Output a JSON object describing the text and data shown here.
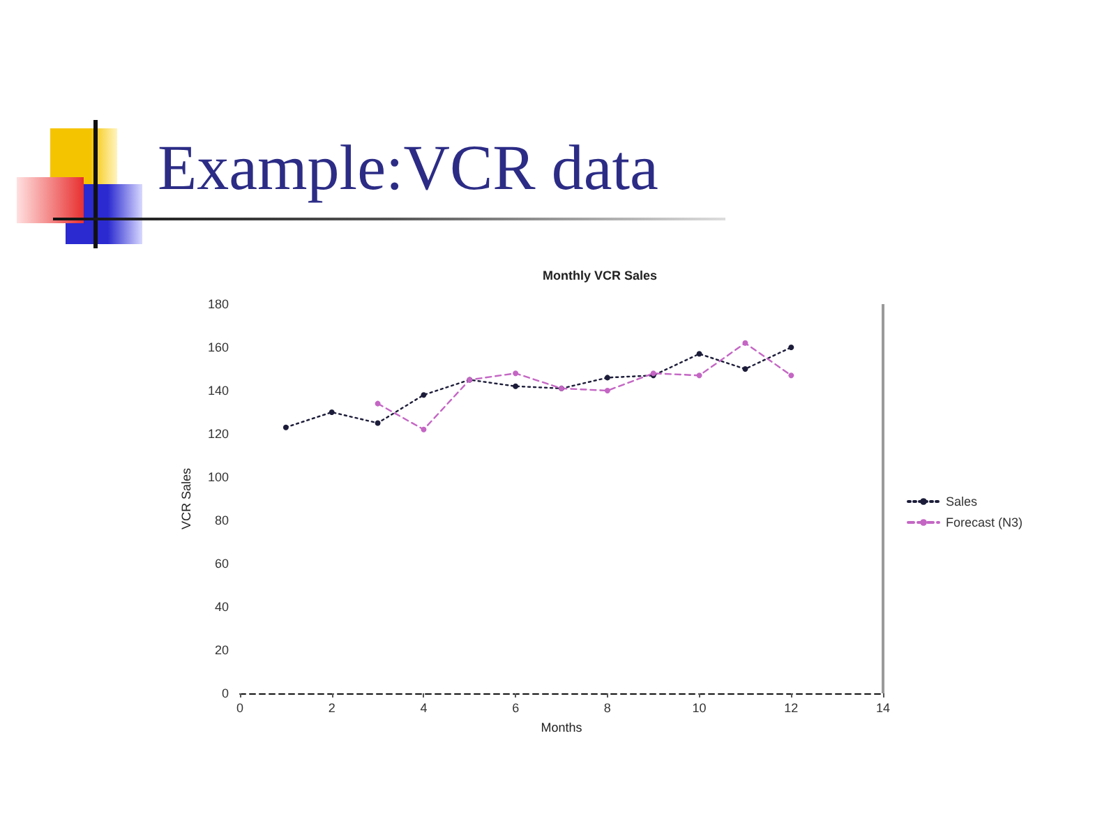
{
  "chart_data": {
    "type": "line",
    "title": "Example:VCR data",
    "subtitle": "Monthly VCR Sales",
    "xlabel": "Months",
    "ylabel": "VCR Sales",
    "series": [
      {
        "name": "Sales",
        "color": "#1c1c3a",
        "line_style": "dotted",
        "x": [
          1,
          2,
          3,
          4,
          5,
          6,
          7,
          8,
          9,
          10,
          11,
          12
        ],
        "values": [
          123,
          130,
          125,
          138,
          145,
          142,
          141,
          146,
          147,
          157,
          150,
          160
        ]
      },
      {
        "name": "Forecast (N3)",
        "color": "#c466c4",
        "line_style": "dashed",
        "x": [
          3,
          4,
          5,
          6,
          7,
          8,
          9,
          10,
          11,
          12
        ],
        "values": [
          134,
          122,
          145,
          148,
          141,
          140,
          148,
          147,
          162,
          147
        ]
      }
    ],
    "xlim": [
      0,
      14
    ],
    "xticks": [
      0,
      2,
      4,
      6,
      8,
      10,
      12,
      14
    ],
    "ylim": [
      0,
      180
    ],
    "yticks": [
      0,
      20,
      40,
      60,
      80,
      100,
      120,
      140,
      160,
      180
    ],
    "legend": "right",
    "marker": "circle"
  }
}
